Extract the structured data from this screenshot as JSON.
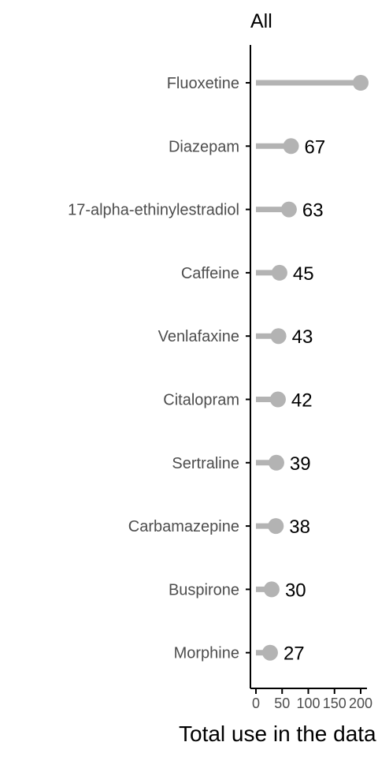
{
  "chart_data": {
    "type": "lollipop",
    "panel_title": "All",
    "xlabel": "Total use in the data",
    "ylabel": "",
    "categories": [
      "Fluoxetine",
      "Diazepam",
      "17-alpha-ethinylestradiol",
      "Caffeine",
      "Venlafaxine",
      "Citalopram",
      "Sertraline",
      "Carbamazepine",
      "Buspirone",
      "Morphine"
    ],
    "values": [
      200,
      67,
      63,
      45,
      43,
      42,
      39,
      38,
      30,
      27
    ],
    "value_labels": [
      "",
      "67",
      "63",
      "45",
      "43",
      "42",
      "39",
      "38",
      "30",
      "27"
    ],
    "x_ticks": [
      0,
      50,
      100,
      150,
      200
    ],
    "x_tick_labels": [
      "0",
      "50",
      "100",
      "150",
      "200"
    ],
    "xlim": [
      -5,
      205
    ],
    "grid": false,
    "legend": "none",
    "colors": {
      "mark": "#b3b3b3",
      "axis": "#000000",
      "label": "#4d4d4d"
    }
  }
}
